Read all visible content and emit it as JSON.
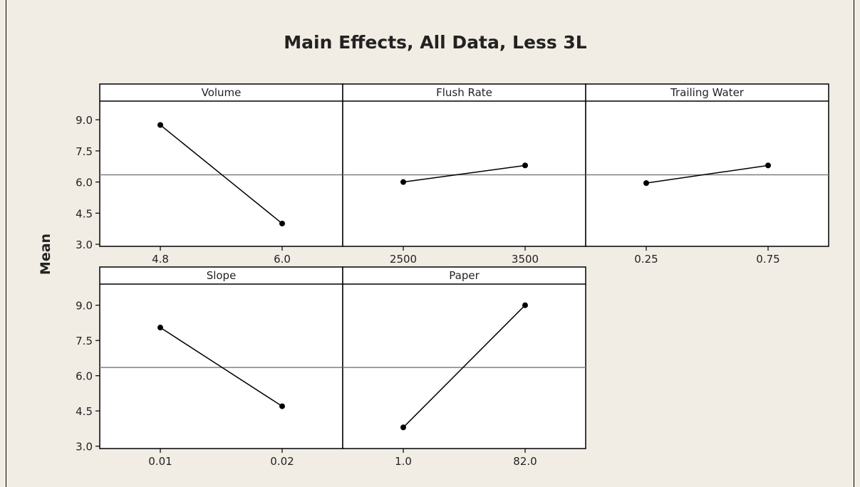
{
  "title": "Main Effects, All Data, Less 3L",
  "colors": {
    "background": "#f1ede4",
    "plot_bg": "#ffffff",
    "line": "#000000",
    "reference_line": "#7f7f7f"
  },
  "chart_data": {
    "type": "line",
    "title": "Main Effects, All Data, Less 3L",
    "ylabel": "Mean",
    "ylim": [
      2.9,
      9.9
    ],
    "yticks": [
      3.0,
      4.5,
      6.0,
      7.5,
      9.0
    ],
    "ytick_labels": [
      "3.0",
      "4.5",
      "6.0",
      "7.5",
      "9.0"
    ],
    "grand_mean": 6.35,
    "panels": [
      {
        "name": "Volume",
        "x": [
          "4.8",
          "6.0"
        ],
        "y": [
          8.75,
          4.0
        ]
      },
      {
        "name": "Flush Rate",
        "x": [
          "2500",
          "3500"
        ],
        "y": [
          6.0,
          6.8
        ]
      },
      {
        "name": "Trailing Water",
        "x": [
          "0.25",
          "0.75"
        ],
        "y": [
          5.95,
          6.8
        ]
      },
      {
        "name": "Slope",
        "x": [
          "0.01",
          "0.02"
        ],
        "y": [
          8.05,
          4.7
        ]
      },
      {
        "name": "Paper",
        "x": [
          "1.0",
          "82.0"
        ],
        "y": [
          3.8,
          9.0
        ]
      }
    ]
  }
}
